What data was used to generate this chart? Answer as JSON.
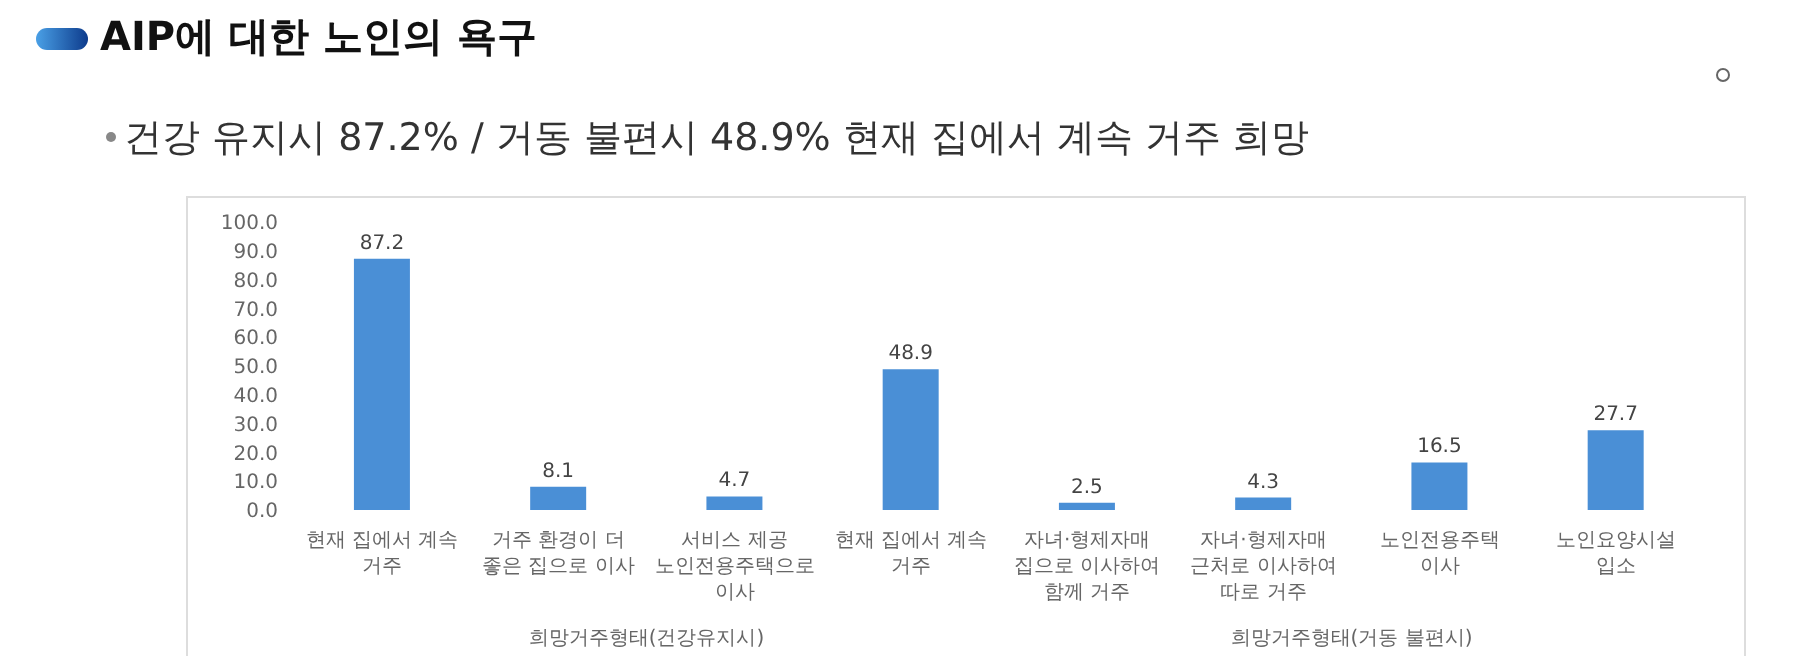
{
  "chart_data": {
    "type": "bar",
    "title": "AIP에 대한 노인의 욕구",
    "subtitle": "건강 유지시 87.2% / 거동 불편시 48.9% 현재 집에서 계속 거주 희망",
    "categories": [
      "현재 집에서 계속\n거주",
      "거주 환경이 더\n좋은 집으로 이사",
      "서비스 제공\n노인전용주택으로\n이사",
      "현재 집에서 계속\n거주",
      "자녀·형제자매\n집으로 이사하여\n함께 거주",
      "자녀·형제자매\n근처로 이사하여\n따로 거주",
      "노인전용주택\n이사",
      "노인요양시설\n입소"
    ],
    "values": [
      87.2,
      8.1,
      4.7,
      48.9,
      2.5,
      4.3,
      16.5,
      27.7
    ],
    "color": "#4a8fd6",
    "ylim": [
      0,
      100
    ],
    "yticks": [
      {
        "value": 0,
        "label": "0.0"
      },
      {
        "value": 10,
        "label": "10.0"
      },
      {
        "value": 20,
        "label": "20.0"
      },
      {
        "value": 30,
        "label": "30.0"
      },
      {
        "value": 40,
        "label": "40.0"
      },
      {
        "value": 50,
        "label": "50.0"
      },
      {
        "value": 60,
        "label": "60.0"
      },
      {
        "value": 70,
        "label": "70.0"
      },
      {
        "value": 80,
        "label": "80.0"
      },
      {
        "value": 90,
        "label": "90.0"
      },
      {
        "value": 100,
        "label": "100.0"
      }
    ],
    "data_labels": true,
    "grid": false,
    "legend": false,
    "annotations": [
      "희망거주형태(건강유지시)",
      "희망거주형태(거동 불편시)"
    ]
  }
}
